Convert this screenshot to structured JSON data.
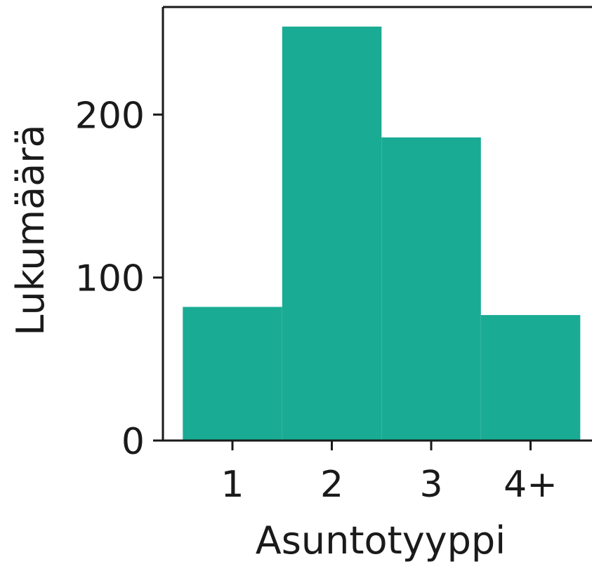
{
  "chart_data": {
    "type": "bar",
    "categories": [
      "1",
      "2",
      "3",
      "4+"
    ],
    "values": [
      82,
      254,
      186,
      77
    ],
    "title": "",
    "xlabel": "Asuntotyyppi",
    "ylabel": "Lukumäärä",
    "ylim": [
      0,
      266
    ],
    "yticks": [
      0,
      100,
      200
    ],
    "bar_color": "#1aab94",
    "grid": false
  }
}
